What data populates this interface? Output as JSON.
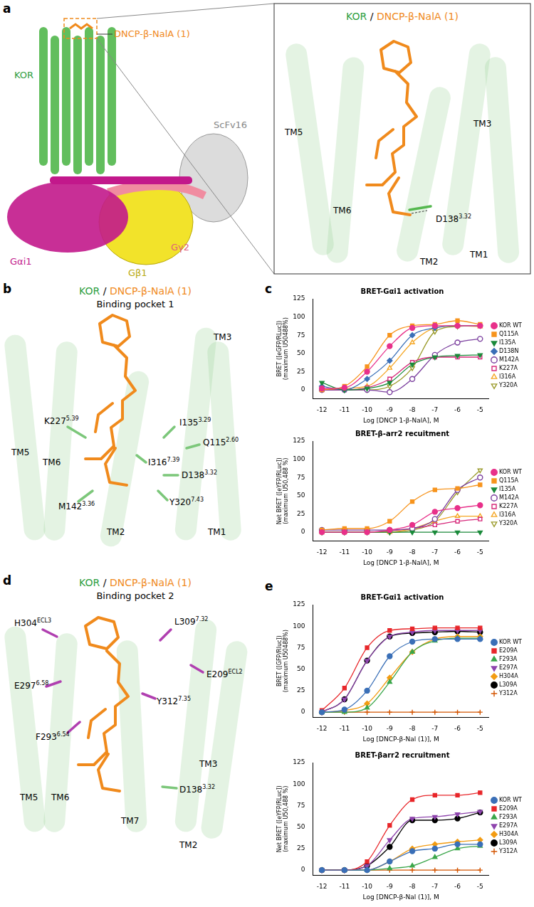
{
  "panel_labels": [
    "a",
    "b",
    "c",
    "d",
    "e"
  ],
  "structures": {
    "a": {
      "labels": [
        "DNCP-β-NalA (1)",
        "KOR",
        "Gαi1",
        "Gβ1",
        "Gγ2",
        "ScFv16"
      ],
      "inset": {
        "title": [
          "KOR",
          "/",
          "DNCP-β-NalA (1)"
        ],
        "labels": [
          "TM5",
          "TM3",
          "TM6",
          "TM1",
          "TM2"
        ],
        "residues": [
          {
            "name": "D138",
            "sup": "3.32"
          }
        ]
      }
    },
    "b": {
      "title": [
        "KOR",
        "/",
        "DNCP-β-NalA (1)"
      ],
      "subtitle": "Binding pocket 1",
      "labels": [
        "TM3",
        "TM5",
        "TM6",
        "TM2",
        "TM1"
      ],
      "residues": [
        {
          "name": "K227",
          "sup": "5.39"
        },
        {
          "name": "I135",
          "sup": "3.29"
        },
        {
          "name": "Q115",
          "sup": "2.60"
        },
        {
          "name": "I316",
          "sup": "7.39"
        },
        {
          "name": "D138",
          "sup": "3.32"
        },
        {
          "name": "Y320",
          "sup": "7.43"
        },
        {
          "name": "M142",
          "sup": "3.36"
        }
      ]
    },
    "d": {
      "title": [
        "KOR",
        "/",
        "DNCP-β-NalA (1)"
      ],
      "subtitle": "Binding pocket 2",
      "labels": [
        "TM5",
        "TM6",
        "TM7",
        "TM3",
        "TM2"
      ],
      "residues": [
        {
          "name": "H304",
          "sup": "ECL3"
        },
        {
          "name": "L309",
          "sup": "7.32"
        },
        {
          "name": "E209",
          "sup": "ECL2"
        },
        {
          "name": "E297",
          "sup": "6.58"
        },
        {
          "name": "Y312",
          "sup": "7.35"
        },
        {
          "name": "F293",
          "sup": "6.54"
        },
        {
          "name": "D138",
          "sup": "3.32"
        }
      ]
    }
  },
  "chart_data": [
    {
      "type": "line",
      "title": "BRET-Gαi1 activation",
      "x_label": "Log [DNCP 1-β-NalA], M",
      "y_label": [
        "BRET ([eGFP/RLuc])",
        "(maximum U50488%)"
      ],
      "x": [
        -12,
        -11,
        -10,
        -9,
        -8,
        -7,
        -6,
        -5
      ],
      "xlim": [
        -12.4,
        -4.6
      ],
      "xticks": [
        -12,
        -11,
        -10,
        -9,
        -8,
        -7,
        -6,
        -5
      ],
      "ylim": [
        -12,
        125
      ],
      "yticks": [
        0,
        25,
        50,
        75,
        100,
        125
      ],
      "grid": false,
      "legend": "right",
      "series": [
        {
          "name": "KOR WT",
          "color": "#e8308a",
          "marker": "circle",
          "values": [
            2,
            3,
            25,
            60,
            85,
            88,
            88,
            88
          ]
        },
        {
          "name": "Q115A",
          "color": "#f7941d",
          "marker": "square",
          "values": [
            0,
            5,
            32,
            75,
            88,
            90,
            95,
            90
          ]
        },
        {
          "name": "I135A",
          "color": "#1a8a3a",
          "marker": "triangle-down",
          "values": [
            10,
            0,
            2,
            10,
            35,
            45,
            47,
            48
          ]
        },
        {
          "name": "D138N",
          "color": "#3a6fb7",
          "marker": "diamond",
          "values": [
            5,
            0,
            15,
            40,
            75,
            85,
            88,
            88
          ]
        },
        {
          "name": "M142A",
          "color": "#7b3f9e",
          "marker": "circle-open",
          "values": [
            0,
            0,
            0,
            -3,
            15,
            48,
            65,
            70
          ]
        },
        {
          "name": "K227A",
          "color": "#d6287a",
          "marker": "square-open",
          "values": [
            0,
            0,
            3,
            15,
            38,
            45,
            45,
            45
          ]
        },
        {
          "name": "I316A",
          "color": "#f5a623",
          "marker": "triangle-up-open",
          "values": [
            0,
            2,
            5,
            30,
            65,
            85,
            88,
            87
          ]
        },
        {
          "name": "Y320A",
          "color": "#9a9a2a",
          "marker": "triangle-down-open",
          "values": [
            0,
            0,
            0,
            5,
            30,
            80,
            87,
            88
          ]
        }
      ]
    },
    {
      "type": "line",
      "title": "BRET-β-arr2 recuitment",
      "x_label": "Log [DNCP 1-β-NalA], M",
      "y_label": [
        "Net BRET ([eYFP/RLuc])",
        "(maximum U50,488 %)"
      ],
      "x": [
        -12,
        -11,
        -10,
        -9,
        -8,
        -7,
        -6,
        -5
      ],
      "xlim": [
        -12.4,
        -4.6
      ],
      "xticks": [
        -12,
        -11,
        -10,
        -9,
        -8,
        -7,
        -6,
        -5
      ],
      "ylim": [
        -12,
        125
      ],
      "yticks": [
        0,
        25,
        50,
        75,
        100,
        125
      ],
      "grid": false,
      "legend": "right",
      "series": [
        {
          "name": "KOR WT",
          "color": "#e8308a",
          "marker": "circle",
          "values": [
            0,
            0,
            0,
            3,
            10,
            28,
            33,
            37
          ]
        },
        {
          "name": "Q115A",
          "color": "#f7941d",
          "marker": "square",
          "values": [
            3,
            5,
            5,
            15,
            42,
            58,
            60,
            65
          ]
        },
        {
          "name": "I135A",
          "color": "#1a8a3a",
          "marker": "triangle-down",
          "values": [
            0,
            0,
            0,
            0,
            0,
            0,
            0,
            0
          ]
        },
        {
          "name": "M142A",
          "color": "#7b3f9e",
          "marker": "circle-open",
          "values": [
            3,
            3,
            3,
            3,
            5,
            18,
            58,
            75
          ]
        },
        {
          "name": "K227A",
          "color": "#d6287a",
          "marker": "square-open",
          "values": [
            0,
            0,
            0,
            2,
            5,
            10,
            15,
            18
          ]
        },
        {
          "name": "I316A",
          "color": "#f5a623",
          "marker": "triangle-up-open",
          "values": [
            0,
            0,
            0,
            0,
            5,
            15,
            22,
            22
          ]
        },
        {
          "name": "Y320A",
          "color": "#9a9a2a",
          "marker": "triangle-down-open",
          "values": [
            0,
            0,
            0,
            0,
            3,
            15,
            55,
            85
          ]
        }
      ]
    },
    {
      "type": "line",
      "title": "BRET-Gαi1 activation",
      "x_label": "Log [DNCP-β-Nal (1)], M",
      "y_label": [
        "BRET ([GFP/Rluc])",
        "(maximum U50488%)"
      ],
      "x": [
        -12,
        -11,
        -10,
        -9,
        -8,
        -7,
        -6,
        -5
      ],
      "xlim": [
        -12.4,
        -4.6
      ],
      "xticks": [
        -12,
        -11,
        -10,
        -9,
        -8,
        -7,
        -6,
        -5
      ],
      "ylim": [
        -6,
        125
      ],
      "yticks": [
        0,
        25,
        50,
        75,
        100,
        125
      ],
      "grid": false,
      "legend": "right",
      "series": [
        {
          "name": "KOR WT",
          "color": "#3a6fb7",
          "marker": "circle",
          "values": [
            0,
            3,
            25,
            65,
            82,
            85,
            85,
            85
          ]
        },
        {
          "name": "E209A",
          "color": "#e8262a",
          "marker": "square",
          "values": [
            2,
            28,
            75,
            95,
            97,
            98,
            98,
            98
          ]
        },
        {
          "name": "F293A",
          "color": "#3aa64a",
          "marker": "triangle-up",
          "values": [
            0,
            0,
            5,
            35,
            70,
            83,
            86,
            86
          ]
        },
        {
          "name": "E297A",
          "color": "#8e44ad",
          "marker": "triangle-down",
          "values": [
            0,
            15,
            60,
            88,
            93,
            95,
            95,
            95
          ]
        },
        {
          "name": "H304A",
          "color": "#f39c12",
          "marker": "diamond",
          "values": [
            0,
            2,
            10,
            40,
            70,
            85,
            88,
            88
          ]
        },
        {
          "name": "L309A",
          "color": "#000000",
          "marker": "circle",
          "values": [
            0,
            15,
            60,
            88,
            92,
            93,
            94,
            93
          ]
        },
        {
          "name": "Y312A",
          "color": "#d35400",
          "marker": "plus",
          "values": [
            0,
            0,
            0,
            0,
            0,
            0,
            0,
            0
          ]
        }
      ]
    },
    {
      "type": "line",
      "title": "BRET-βarr2 recruitment",
      "x_label": "Log [DNCP-β-Nal (1)], M",
      "y_label": [
        "Net BRET ([eYFP/RLuc])",
        "(maximum U50,488 %)"
      ],
      "x": [
        -12,
        -11,
        -10,
        -9,
        -8,
        -7,
        -6,
        -5
      ],
      "xlim": [
        -12.4,
        -4.6
      ],
      "xticks": [
        -12,
        -11,
        -10,
        -9,
        -8,
        -7,
        -6,
        -5
      ],
      "ylim": [
        -6,
        125
      ],
      "yticks": [
        0,
        25,
        50,
        75,
        100,
        125
      ],
      "grid": false,
      "legend": "right",
      "series": [
        {
          "name": "KOR WT",
          "color": "#3a6fb7",
          "marker": "circle",
          "values": [
            0,
            0,
            0,
            10,
            22,
            25,
            30,
            30
          ]
        },
        {
          "name": "E209A",
          "color": "#e8262a",
          "marker": "square",
          "values": [
            0,
            0,
            10,
            52,
            82,
            87,
            87,
            90
          ]
        },
        {
          "name": "F293A",
          "color": "#3aa64a",
          "marker": "triangle-up",
          "values": [
            0,
            0,
            0,
            2,
            5,
            15,
            25,
            28
          ]
        },
        {
          "name": "E297A",
          "color": "#8e44ad",
          "marker": "triangle-down",
          "values": [
            0,
            0,
            5,
            35,
            60,
            62,
            65,
            68
          ]
        },
        {
          "name": "H304A",
          "color": "#f39c12",
          "marker": "diamond",
          "values": [
            0,
            0,
            0,
            10,
            25,
            30,
            33,
            35
          ]
        },
        {
          "name": "L309A",
          "color": "#000000",
          "marker": "circle",
          "values": [
            0,
            0,
            5,
            27,
            58,
            58,
            60,
            67
          ]
        },
        {
          "name": "Y312A",
          "color": "#d35400",
          "marker": "plus",
          "values": [
            0,
            0,
            0,
            0,
            0,
            0,
            0,
            0
          ]
        }
      ]
    }
  ]
}
